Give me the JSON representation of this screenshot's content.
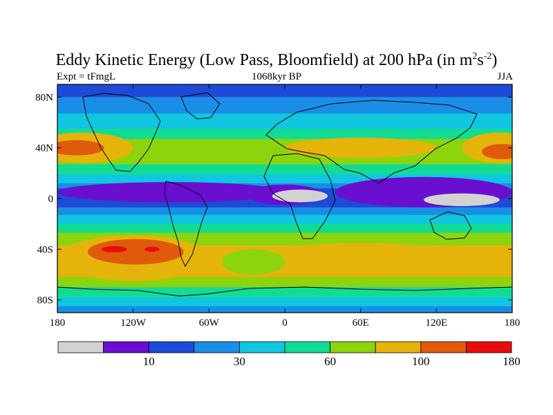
{
  "chart_data": {
    "type": "heatmap",
    "title_main": "Eddy Kinetic Energy (Low Pass, Bloomfield) at 200 hPa (in m",
    "title_sup1": "2",
    "title_mid": "s",
    "title_sup2": "-2",
    "title_end": ")",
    "subtitle_left": "Expt = tFmgL",
    "subtitle_center": "1068kyr BP",
    "subtitle_right": "JJA",
    "x_ticks": [
      {
        "value": -180,
        "label": "180"
      },
      {
        "value": -120,
        "label": "120W"
      },
      {
        "value": -60,
        "label": "60W"
      },
      {
        "value": 0,
        "label": "0"
      },
      {
        "value": 60,
        "label": "60E"
      },
      {
        "value": 120,
        "label": "120E"
      },
      {
        "value": 180,
        "label": "180"
      }
    ],
    "y_ticks": [
      {
        "value": 80,
        "label": "80N"
      },
      {
        "value": 40,
        "label": "40N"
      },
      {
        "value": 0,
        "label": "0"
      },
      {
        "value": -40,
        "label": "40S"
      },
      {
        "value": -80,
        "label": "80S"
      }
    ],
    "xlim": [
      -180,
      180
    ],
    "ylim": [
      -90,
      90
    ],
    "colorbar": {
      "colors": [
        "#d2d2d2",
        "#6a0fcf",
        "#1e4ad8",
        "#1a8ee6",
        "#10c6e0",
        "#12dc94",
        "#8cd40e",
        "#e4b40a",
        "#e05a0c",
        "#e80c0c"
      ],
      "ticks": [
        {
          "boundary": 2,
          "label": "10"
        },
        {
          "boundary": 4,
          "label": "30"
        },
        {
          "boundary": 6,
          "label": "60"
        },
        {
          "boundary": 8,
          "label": "100"
        },
        {
          "boundary": 10,
          "label": "180"
        }
      ]
    },
    "zonal_bands": [
      {
        "lat_top": 90,
        "lat_bottom": 80,
        "color": "#1e4ad8"
      },
      {
        "lat_top": 80,
        "lat_bottom": 67,
        "color": "#1a8ee6"
      },
      {
        "lat_top": 67,
        "lat_bottom": 55,
        "color": "#10c6e0"
      },
      {
        "lat_top": 55,
        "lat_bottom": 47,
        "color": "#12dc94"
      },
      {
        "lat_top": 47,
        "lat_bottom": 27,
        "color": "#8cd40e"
      },
      {
        "lat_top": 27,
        "lat_bottom": 19,
        "color": "#12dc94"
      },
      {
        "lat_top": 19,
        "lat_bottom": 12,
        "color": "#10c6e0"
      },
      {
        "lat_top": 12,
        "lat_bottom": 8,
        "color": "#1a8ee6"
      },
      {
        "lat_top": 8,
        "lat_bottom": -7,
        "color": "#1e4ad8"
      },
      {
        "lat_top": -7,
        "lat_bottom": -13,
        "color": "#1a8ee6"
      },
      {
        "lat_top": -13,
        "lat_bottom": -20,
        "color": "#10c6e0"
      },
      {
        "lat_top": -20,
        "lat_bottom": -27,
        "color": "#12dc94"
      },
      {
        "lat_top": -27,
        "lat_bottom": -37,
        "color": "#8cd40e"
      },
      {
        "lat_top": -37,
        "lat_bottom": -62,
        "color": "#e4b40a"
      },
      {
        "lat_top": -62,
        "lat_bottom": -70,
        "color": "#8cd40e"
      },
      {
        "lat_top": -70,
        "lat_bottom": -78,
        "color": "#12dc94"
      },
      {
        "lat_top": -78,
        "lat_bottom": -85,
        "color": "#10c6e0"
      },
      {
        "lat_top": -85,
        "lat_bottom": -90,
        "color": "#1a8ee6"
      }
    ],
    "blobs": [
      {
        "lon": -160,
        "lat": 40,
        "rlon": 40,
        "rlat": 12,
        "color": "#e4b40a"
      },
      {
        "lon": 170,
        "lat": 40,
        "rlon": 30,
        "rlat": 12,
        "color": "#e4b40a"
      },
      {
        "lon": 60,
        "lat": 40,
        "rlon": 60,
        "rlat": 8,
        "color": "#e4b40a"
      },
      {
        "lon": -165,
        "lat": 40,
        "rlon": 22,
        "rlat": 6,
        "color": "#e05a0c"
      },
      {
        "lon": 172,
        "lat": 37,
        "rlon": 16,
        "rlat": 6,
        "color": "#e05a0c"
      },
      {
        "lon": -90,
        "lat": 5,
        "rlon": 90,
        "rlat": 8,
        "color": "#6a0fcf"
      },
      {
        "lon": 110,
        "lat": 5,
        "rlon": 70,
        "rlat": 12,
        "color": "#6a0fcf"
      },
      {
        "lon": 0,
        "lat": 3,
        "rlon": 30,
        "rlat": 8,
        "color": "#6a0fcf"
      },
      {
        "lon": 12,
        "lat": 2,
        "rlon": 22,
        "rlat": 5,
        "color": "#d2d2d2"
      },
      {
        "lon": 140,
        "lat": -1,
        "rlon": 30,
        "rlat": 5,
        "color": "#d2d2d2"
      },
      {
        "lon": -120,
        "lat": -47,
        "rlon": 60,
        "rlat": 18,
        "color": "#e4b40a"
      },
      {
        "lon": -118,
        "lat": -42,
        "rlon": 38,
        "rlat": 10,
        "color": "#e05a0c"
      },
      {
        "lon": -135,
        "lat": -40,
        "rlon": 10,
        "rlat": 2.5,
        "color": "#e80c0c"
      },
      {
        "lon": -105,
        "lat": -40,
        "rlon": 6,
        "rlat": 2,
        "color": "#e80c0c"
      },
      {
        "lon": 60,
        "lat": -47,
        "rlon": 80,
        "rlat": 12,
        "color": "#e4b40a"
      },
      {
        "lon": -25,
        "lat": -50,
        "rlon": 25,
        "rlat": 10,
        "color": "#8cd40e"
      }
    ]
  }
}
